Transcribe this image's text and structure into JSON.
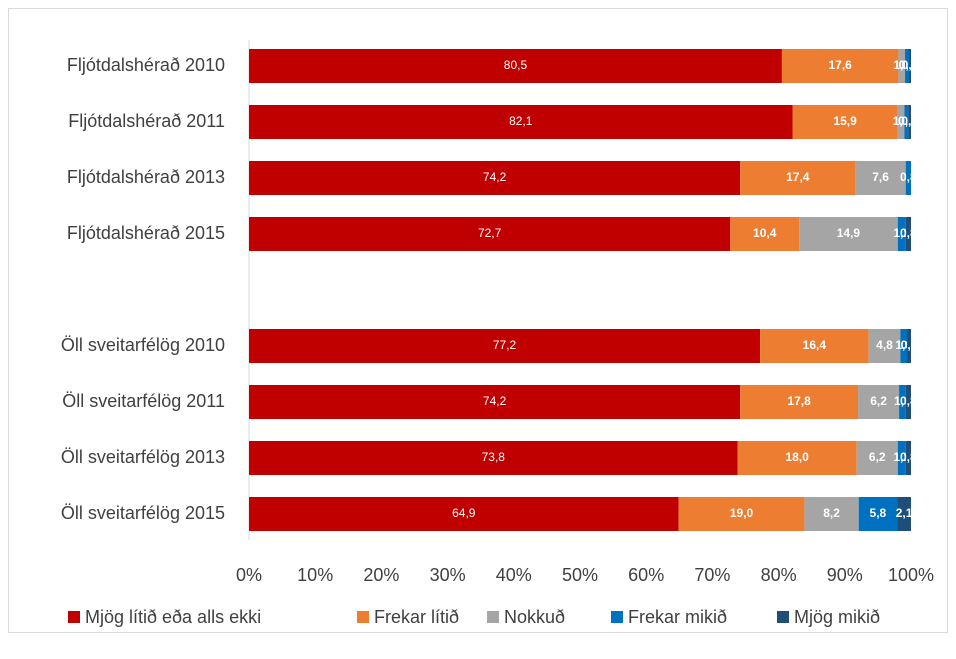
{
  "chart_data": {
    "type": "stacked-bar-horizontal",
    "categories": [
      "Fljótdalshérað 2010",
      "Fljótdalshérað 2011",
      "Fljótdalshérað 2013",
      "Fljótdalshérað 2015",
      null,
      "Öll sveitarfélög 2010",
      "Öll sveitarfélög 2011",
      "Öll sveitarfélög 2013",
      "Öll sveitarfélög 2015"
    ],
    "series": [
      {
        "name": "Mjög lítið eða alls ekki",
        "color": "#c00000",
        "values": [
          80.5,
          82.1,
          74.2,
          72.7,
          null,
          77.2,
          74.2,
          73.8,
          64.9
        ],
        "value_labels": [
          "80,5",
          "82,1",
          "74,2",
          "72,7",
          null,
          "77,2",
          "74,2",
          "73,8",
          "64,9"
        ]
      },
      {
        "name": "Frekar lítið",
        "color": "#ed7d31",
        "values": [
          17.6,
          15.9,
          17.4,
          10.4,
          null,
          16.4,
          17.8,
          18.0,
          19.0
        ],
        "value_labels": [
          "17,6",
          "15,9",
          "17,4",
          "10,4",
          null,
          "16,4",
          "17,8",
          "18,0",
          "19,0"
        ]
      },
      {
        "name": "Nokkuð",
        "color": "#a5a5a5",
        "values": [
          1.0,
          1.0,
          7.6,
          14.9,
          null,
          4.8,
          6.2,
          6.2,
          8.2
        ],
        "value_labels": [
          "1,0",
          "1,0",
          "7,6",
          "14,9",
          null,
          "4,8",
          "6,2",
          "6,2",
          "8,2"
        ]
      },
      {
        "name": "Frekar mikið",
        "color": "#0070c0",
        "values": [
          0.6,
          0.6,
          0.8,
          1.2,
          null,
          1.0,
          1.0,
          1.2,
          5.8
        ],
        "value_labels": [
          "0,6",
          "0,6",
          "0,8",
          "1,2",
          null,
          "1,0",
          "1,0",
          "1,2",
          "5,8"
        ]
      },
      {
        "name": "Mjög mikið",
        "color": "#1f4e79",
        "values": [
          0.3,
          0.4,
          null,
          0.8,
          null,
          0.6,
          0.8,
          0.8,
          2.1
        ],
        "value_labels": [
          "0,3",
          "0,4",
          null,
          "0,8",
          null,
          "0,6",
          "0,8",
          "0,8",
          "2,1"
        ]
      }
    ],
    "xlim": [
      0,
      100
    ],
    "xticks": [
      {
        "value": 0,
        "label": "0%"
      },
      {
        "value": 10,
        "label": "10%"
      },
      {
        "value": 20,
        "label": "20%"
      },
      {
        "value": 30,
        "label": "30%"
      },
      {
        "value": 40,
        "label": "40%"
      },
      {
        "value": 50,
        "label": "50%"
      },
      {
        "value": 60,
        "label": "60%"
      },
      {
        "value": 70,
        "label": "70%"
      },
      {
        "value": 80,
        "label": "80%"
      },
      {
        "value": 90,
        "label": "90%"
      },
      {
        "value": 100,
        "label": "100%"
      }
    ],
    "legend": "bottom"
  }
}
